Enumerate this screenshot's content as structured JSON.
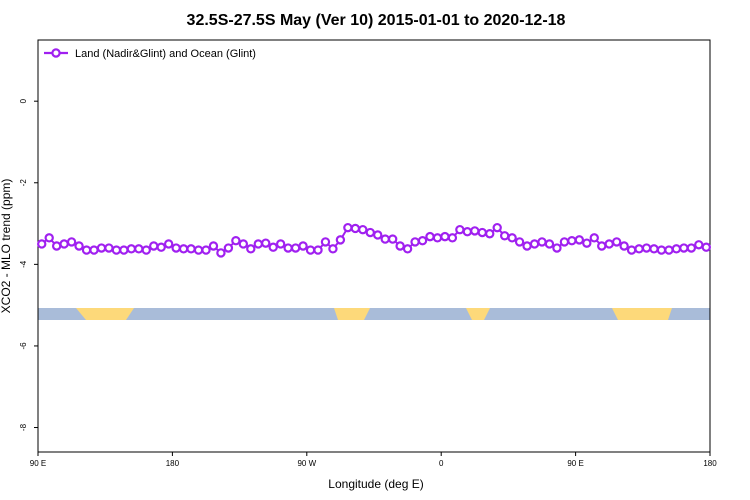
{
  "chart_data": {
    "type": "line",
    "title": "32.5S-27.5S May (Ver 10)   2015-01-01 to 2020-12-18",
    "x_label": "Longitude (deg E)",
    "y_label": "XCO2 - MLO trend (ppm)",
    "x": [
      92.5,
      97.5,
      102.5,
      107.5,
      112.5,
      117.5,
      122.5,
      127.5,
      132.5,
      137.5,
      142.5,
      147.5,
      152.5,
      157.5,
      162.5,
      167.5,
      172.5,
      177.5,
      182.5,
      187.5,
      192.5,
      197.5,
      202.5,
      207.5,
      212.5,
      217.5,
      222.5,
      227.5,
      232.5,
      237.5,
      242.5,
      247.5,
      252.5,
      257.5,
      262.5,
      267.5,
      272.5,
      277.5,
      282.5,
      287.5,
      292.5,
      297.5,
      302.5,
      307.5,
      312.5,
      317.5,
      322.5,
      327.5,
      332.5,
      337.5,
      342.5,
      347.5,
      352.5,
      357.5,
      362.5,
      367.5,
      372.5,
      377.5,
      382.5,
      387.5,
      392.5,
      397.5,
      402.5,
      407.5,
      412.5,
      417.5,
      422.5,
      427.5,
      432.5,
      437.5,
      442.5,
      447.5,
      452.5,
      457.5,
      462.5,
      467.5,
      472.5,
      477.5,
      482.5,
      487.5,
      492.5,
      497.5,
      502.5,
      507.5,
      512.5,
      517.5,
      522.5,
      527.5,
      532.5,
      537.5
    ],
    "series": [
      {
        "name": "Land (Nadir&Glint) and Ocean (Glint)",
        "color": "#a020f0",
        "values": [
          -3.5,
          -3.35,
          -3.55,
          -3.5,
          -3.45,
          -3.55,
          -3.65,
          -3.65,
          -3.6,
          -3.6,
          -3.65,
          -3.65,
          -3.62,
          -3.62,
          -3.65,
          -3.55,
          -3.58,
          -3.5,
          -3.6,
          -3.62,
          -3.62,
          -3.65,
          -3.65,
          -3.55,
          -3.72,
          -3.6,
          -3.42,
          -3.5,
          -3.62,
          -3.5,
          -3.48,
          -3.58,
          -3.5,
          -3.6,
          -3.6,
          -3.55,
          -3.65,
          -3.65,
          -3.45,
          -3.62,
          -3.4,
          -3.1,
          -3.12,
          -3.15,
          -3.22,
          -3.28,
          -3.38,
          -3.38,
          -3.55,
          -3.62,
          -3.45,
          -3.42,
          -3.32,
          -3.35,
          -3.32,
          -3.35,
          -3.15,
          -3.2,
          -3.18,
          -3.22,
          -3.25,
          -3.1,
          -3.3,
          -3.35,
          -3.45,
          -3.55,
          -3.5,
          -3.45,
          -3.5,
          -3.6,
          -3.45,
          -3.42,
          -3.4,
          -3.48,
          -3.35,
          -3.55,
          -3.5,
          -3.45,
          -3.55,
          -3.65,
          -3.62,
          -3.6,
          -3.62,
          -3.65,
          -3.65,
          -3.62,
          -3.6,
          -3.6,
          -3.52,
          -3.58
        ]
      }
    ],
    "xlim": [
      90,
      540
    ],
    "xticks": [
      {
        "value": 90,
        "label": "90 E"
      },
      {
        "value": 180,
        "label": "180"
      },
      {
        "value": 270,
        "label": "90 W"
      },
      {
        "value": 360,
        "label": "0"
      },
      {
        "value": 450,
        "label": "90 E"
      },
      {
        "value": 540,
        "label": "180"
      }
    ],
    "ylim": [
      -8.6,
      1.5
    ],
    "yticks": [
      0,
      -2,
      -4,
      -6,
      -8
    ],
    "legend": "topleft"
  }
}
